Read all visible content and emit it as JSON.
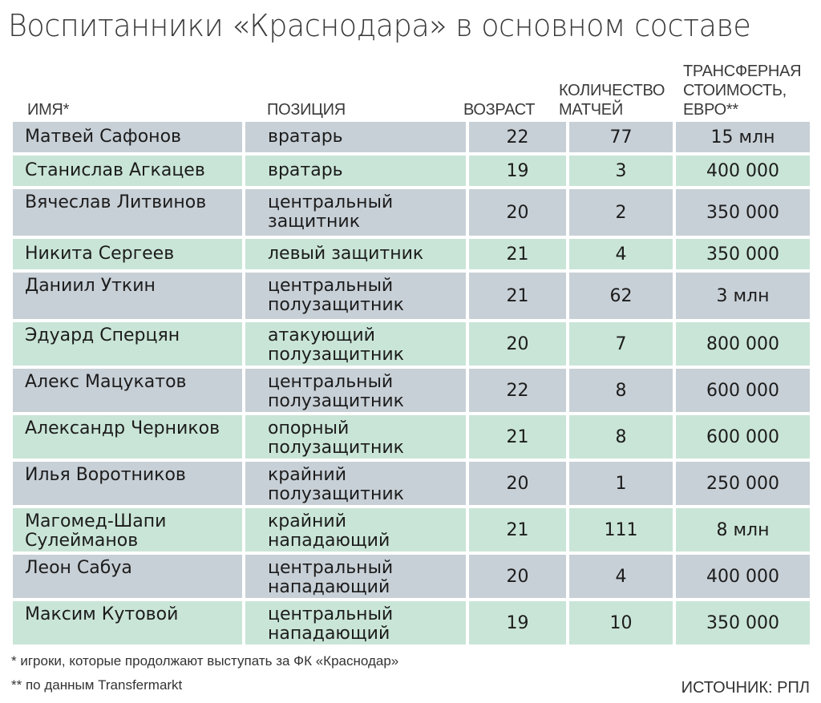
{
  "title": "Воспитанники «Краснодара» в основном составе",
  "headers": {
    "name": "ИМЯ*",
    "position": "ПОЗИЦИЯ",
    "age": "ВОЗРАСТ",
    "matches": [
      "КОЛИЧЕСТВО",
      "МАТЧЕЙ"
    ],
    "cost": [
      "ТРАНСФЕРНАЯ",
      "СТОИМОСТЬ,",
      "ЕВРО**"
    ]
  },
  "rows": [
    {
      "name": [
        "Матвей Сафонов"
      ],
      "position": [
        "вратарь"
      ],
      "age": "22",
      "matches": "77",
      "cost": "15 млн"
    },
    {
      "name": [
        "Станислав Агкацев"
      ],
      "position": [
        "вратарь"
      ],
      "age": "19",
      "matches": "3",
      "cost": "400 000"
    },
    {
      "name": [
        "Вячеслав Литвинов"
      ],
      "position": [
        "центральный",
        "защитник"
      ],
      "age": "20",
      "matches": "2",
      "cost": "350 000"
    },
    {
      "name": [
        "Никита Сергеев"
      ],
      "position": [
        "левый защитник"
      ],
      "age": "21",
      "matches": "4",
      "cost": "350 000"
    },
    {
      "name": [
        "Даниил Уткин"
      ],
      "position": [
        "центральный",
        "полузащитник"
      ],
      "age": "21",
      "matches": "62",
      "cost": "3 млн"
    },
    {
      "name": [
        "Эдуард Сперцян"
      ],
      "position": [
        "атакующий",
        "полузащитник"
      ],
      "age": "20",
      "matches": "7",
      "cost": "800 000"
    },
    {
      "name": [
        "Алекс Мацукатов"
      ],
      "position": [
        "центральный",
        "полузащитник"
      ],
      "age": "22",
      "matches": "8",
      "cost": "600 000"
    },
    {
      "name": [
        "Александр Черников"
      ],
      "position": [
        "опорный",
        "полузащитник"
      ],
      "age": "21",
      "matches": "8",
      "cost": "600 000"
    },
    {
      "name": [
        "Илья Воротников"
      ],
      "position": [
        "крайний",
        "полузащитник"
      ],
      "age": "20",
      "matches": "1",
      "cost": "250 000"
    },
    {
      "name": [
        "Магомед-Шапи",
        "Сулейманов"
      ],
      "position": [
        "крайний",
        "нападающий"
      ],
      "age": "21",
      "matches": "111",
      "cost": "8 млн"
    },
    {
      "name": [
        "Леон Сабуа"
      ],
      "position": [
        "центральный",
        "нападающий"
      ],
      "age": "20",
      "matches": "4",
      "cost": "400 000"
    },
    {
      "name": [
        "Максим Кутовой"
      ],
      "position": [
        "центральный",
        "нападающий"
      ],
      "age": "19",
      "matches": "10",
      "cost": "350 000"
    }
  ],
  "footnotes": [
    "* игроки, которые продолжают выступать за ФК «Краснодар»",
    "** по данным Transfermarkt"
  ],
  "source": "ИСТОЧНИК: РПЛ",
  "colors": {
    "row_grey": "#c8d0d7",
    "row_green": "#c9e5d7"
  }
}
